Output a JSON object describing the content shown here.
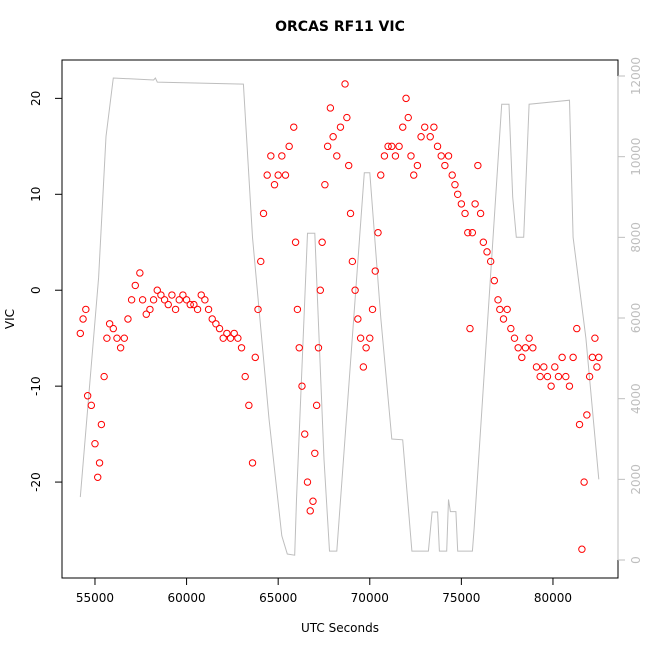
{
  "chart_data": {
    "type": "scatter",
    "title": "ORCAS RF11 VIC",
    "xlabel": "UTC Seconds",
    "ylabel": "VIC",
    "xlim": [
      53200,
      83550
    ],
    "ylim": [
      -30,
      24
    ],
    "y2lim": [
      -446,
      12397
    ],
    "xticks": [
      55000,
      60000,
      65000,
      70000,
      75000,
      80000
    ],
    "yticks": [
      -20,
      -10,
      0,
      10,
      20
    ],
    "y2ticks": [
      0,
      2000,
      4000,
      6000,
      8000,
      10000,
      12000
    ],
    "y2color": "#bebebe",
    "series": [
      {
        "color": "#ff0000",
        "x": [
          54200,
          54350,
          54500,
          54600,
          54800,
          55000,
          55150,
          55250,
          55350,
          55500,
          55650,
          55800,
          56000,
          56200,
          56400,
          56600,
          56800,
          57000,
          57200,
          57450,
          57600,
          57800,
          58000,
          58200,
          58400,
          58600,
          58800,
          59000,
          59200,
          59400,
          59600,
          59800,
          60000,
          60200,
          60400,
          60600,
          60800,
          61000,
          61200,
          61400,
          61600,
          61800,
          62000,
          62200,
          62400,
          62600,
          62800,
          63000,
          63200,
          63400,
          63600,
          63750,
          63900,
          64050,
          64200,
          64400,
          64600,
          64800,
          65000,
          65200,
          65400,
          65600,
          65850,
          65950,
          66050,
          66150,
          66300,
          66450,
          66600,
          66750,
          66900,
          67000,
          67100,
          67200,
          67300,
          67400,
          67550,
          67700,
          67850,
          68000,
          68200,
          68400,
          68650,
          68750,
          68850,
          68950,
          69050,
          69200,
          69350,
          69500,
          69650,
          69800,
          70000,
          70150,
          70300,
          70450,
          70600,
          70800,
          71000,
          71200,
          71400,
          71600,
          71800,
          71980,
          72100,
          72250,
          72400,
          72600,
          72800,
          73000,
          73300,
          73500,
          73700,
          73900,
          74100,
          74300,
          74500,
          74650,
          74800,
          75000,
          75200,
          75350,
          75470,
          75600,
          75750,
          75900,
          76050,
          76200,
          76400,
          76600,
          76800,
          77000,
          77100,
          77300,
          77500,
          77700,
          77900,
          78100,
          78300,
          78500,
          78700,
          78900,
          79100,
          79300,
          79500,
          79700,
          79900,
          80100,
          80300,
          80500,
          80700,
          80900,
          81100,
          81300,
          81450,
          81580,
          81700,
          81850,
          82000,
          82150,
          82290,
          82400,
          82500
        ],
        "values": [
          -4.5,
          -3,
          -2,
          -11,
          -12,
          -16,
          -19.5,
          -18,
          -14,
          -9,
          -5,
          -3.5,
          -4,
          -5,
          -6,
          -5,
          -3,
          -1,
          0.5,
          1.8,
          -1,
          -2.5,
          -2,
          -1,
          0,
          -0.5,
          -1,
          -1.5,
          -0.5,
          -2,
          -1,
          -0.5,
          -1,
          -1.5,
          -1.5,
          -2,
          -0.5,
          -1,
          -2,
          -3,
          -3.5,
          -4,
          -5,
          -4.5,
          -5,
          -4.5,
          -5,
          -6,
          -9,
          -12,
          -18,
          -7,
          -2,
          3,
          8,
          12,
          14,
          11,
          12,
          14,
          12,
          15,
          17,
          5,
          -2,
          -6,
          -10,
          -15,
          -20,
          -23,
          -22,
          -17,
          -12,
          -6,
          0,
          5,
          11,
          15,
          19,
          16,
          14,
          17,
          21.5,
          18,
          13,
          8,
          3,
          0,
          -3,
          -5,
          -8,
          -6,
          -5,
          -2,
          2,
          6,
          12,
          14,
          15,
          15,
          14,
          15,
          17,
          20,
          18,
          14,
          12,
          13,
          16,
          17,
          16,
          17,
          15,
          14,
          13,
          14,
          12,
          11,
          10,
          9,
          8,
          6,
          -4,
          6,
          9,
          13,
          8,
          5,
          4,
          3,
          1,
          -1,
          -2,
          -3,
          -2,
          -4,
          -5,
          -6,
          -7,
          -6,
          -5,
          -6,
          -8,
          -9,
          -8,
          -9,
          -10,
          -8,
          -9,
          -7,
          -9,
          -10,
          -7,
          -4,
          -14,
          -27,
          -20,
          -13,
          -9,
          -7,
          -5,
          -8,
          -7
        ]
      },
      {
        "type": "line",
        "axis": "y2",
        "color": "#bebebe",
        "x": [
          54200,
          55200,
          55600,
          56000,
          58200,
          58300,
          58400,
          63100,
          63600,
          64500,
          65200,
          65500,
          65900,
          66000,
          66600,
          67000,
          67500,
          67800,
          68200,
          69700,
          70000,
          70600,
          71200,
          71800,
          72300,
          73200,
          73400,
          73700,
          73800,
          74200,
          74300,
          74400,
          74700,
          74800,
          75600,
          75700,
          76300,
          77200,
          77600,
          77800,
          78000,
          78400,
          78700,
          80900,
          81100,
          81800,
          82500
        ],
        "values": [
          1560,
          7000,
          10500,
          11950,
          11900,
          11950,
          11850,
          11800,
          8000,
          3500,
          600,
          150,
          120,
          1500,
          8100,
          8100,
          2500,
          220,
          220,
          9600,
          9600,
          6000,
          3000,
          2980,
          220,
          220,
          1190,
          1190,
          220,
          220,
          1500,
          1200,
          1200,
          220,
          220,
          800,
          5000,
          11300,
          11300,
          9000,
          8000,
          8000,
          11300,
          11400,
          8000,
          5500,
          2000
        ]
      }
    ]
  }
}
